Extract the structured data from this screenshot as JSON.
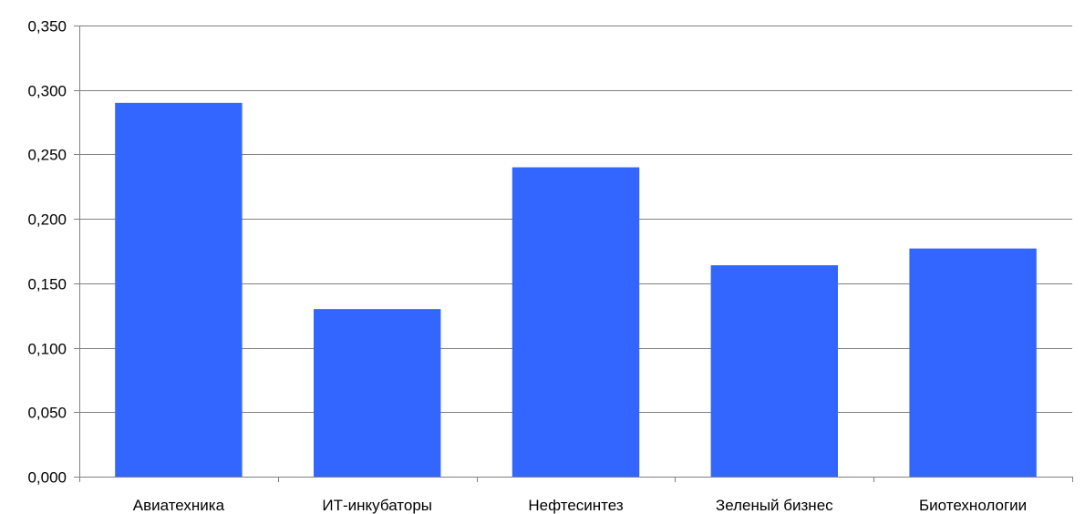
{
  "chart_data": {
    "type": "bar",
    "categories": [
      "Авиатехника",
      "ИТ-инкубаторы",
      "Нефтесинтез",
      "Зеленый бизнес",
      "Биотехнологии"
    ],
    "values": [
      0.29,
      0.13,
      0.24,
      0.164,
      0.177
    ],
    "yticks": [
      "0,000",
      "0,050",
      "0,100",
      "0,150",
      "0,200",
      "0,250",
      "0,300",
      "0,350"
    ],
    "ylim": [
      0,
      0.35
    ],
    "ystep": 0.05,
    "grid": true,
    "bar_color": "#3366FF",
    "grid_color": "#808080",
    "axis_color": "#808080"
  }
}
